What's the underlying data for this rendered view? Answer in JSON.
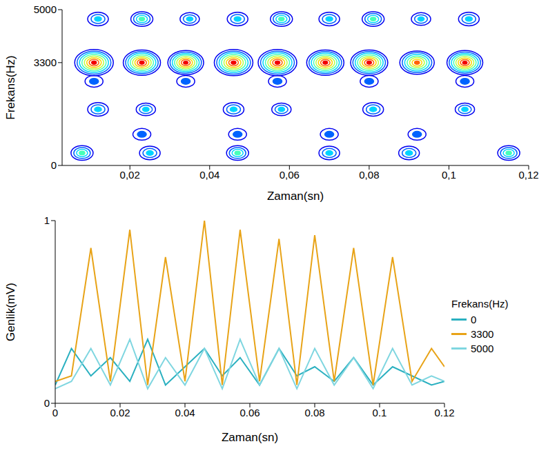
{
  "chart_data": [
    {
      "type": "contour",
      "x_label": "Zaman(sn)",
      "y_label": "Frekans(Hz)",
      "xlim": [
        0.003,
        0.12
      ],
      "ylim": [
        0,
        5000
      ],
      "xticks": [
        {
          "value": 0.02,
          "label": "0,02"
        },
        {
          "value": 0.04,
          "label": "0,04"
        },
        {
          "value": 0.06,
          "label": "0,06"
        },
        {
          "value": 0.08,
          "label": "0,08"
        },
        {
          "value": 0.1,
          "label": "0,1"
        },
        {
          "value": 0.12,
          "label": "0,12"
        }
      ],
      "yticks": [
        0,
        3300,
        5000
      ],
      "zlim": [
        0,
        1
      ],
      "points": [
        {
          "x": 0.011,
          "y": 3300,
          "z": 1
        },
        {
          "x": 0.023,
          "y": 3300,
          "z": 0.95
        },
        {
          "x": 0.034,
          "y": 3300,
          "z": 0.9
        },
        {
          "x": 0.046,
          "y": 3300,
          "z": 1
        },
        {
          "x": 0.057,
          "y": 3300,
          "z": 1
        },
        {
          "x": 0.069,
          "y": 3300,
          "z": 0.95
        },
        {
          "x": 0.08,
          "y": 3300,
          "z": 0.95
        },
        {
          "x": 0.092,
          "y": 3300,
          "z": 0.85
        },
        {
          "x": 0.104,
          "y": 3300,
          "z": 0.9
        },
        {
          "x": 0.012,
          "y": 4700,
          "z": 0.35
        },
        {
          "x": 0.023,
          "y": 4700,
          "z": 0.4
        },
        {
          "x": 0.035,
          "y": 4700,
          "z": 0.3
        },
        {
          "x": 0.047,
          "y": 4700,
          "z": 0.35
        },
        {
          "x": 0.058,
          "y": 4700,
          "z": 0.4
        },
        {
          "x": 0.07,
          "y": 4700,
          "z": 0.35
        },
        {
          "x": 0.081,
          "y": 4700,
          "z": 0.4
        },
        {
          "x": 0.093,
          "y": 4700,
          "z": 0.3
        },
        {
          "x": 0.105,
          "y": 4700,
          "z": 0.35
        },
        {
          "x": 0.011,
          "y": 2700,
          "z": 0.25
        },
        {
          "x": 0.034,
          "y": 2700,
          "z": 0.25
        },
        {
          "x": 0.057,
          "y": 2700,
          "z": 0.25
        },
        {
          "x": 0.08,
          "y": 2700,
          "z": 0.25
        },
        {
          "x": 0.104,
          "y": 2700,
          "z": 0.25
        },
        {
          "x": 0.012,
          "y": 1800,
          "z": 0.35
        },
        {
          "x": 0.024,
          "y": 1800,
          "z": 0.3
        },
        {
          "x": 0.046,
          "y": 1800,
          "z": 0.35
        },
        {
          "x": 0.058,
          "y": 1800,
          "z": 0.3
        },
        {
          "x": 0.081,
          "y": 1800,
          "z": 0.35
        },
        {
          "x": 0.104,
          "y": 1800,
          "z": 0.3
        },
        {
          "x": 0.023,
          "y": 1000,
          "z": 0.25
        },
        {
          "x": 0.047,
          "y": 1000,
          "z": 0.25
        },
        {
          "x": 0.07,
          "y": 1000,
          "z": 0.25
        },
        {
          "x": 0.092,
          "y": 1000,
          "z": 0.25
        },
        {
          "x": 0.008,
          "y": 400,
          "z": 0.4
        },
        {
          "x": 0.025,
          "y": 400,
          "z": 0.35
        },
        {
          "x": 0.047,
          "y": 400,
          "z": 0.4
        },
        {
          "x": 0.07,
          "y": 400,
          "z": 0.35
        },
        {
          "x": 0.09,
          "y": 400,
          "z": 0.35
        },
        {
          "x": 0.115,
          "y": 400,
          "z": 0.4
        }
      ]
    },
    {
      "type": "line",
      "x_label": "Zaman(sn)",
      "y_label": "Genlik(mV)",
      "legend_title": "Frekans(Hz)",
      "legend": "right",
      "x": [
        0,
        0.005,
        0.011,
        0.017,
        0.023,
        0.0285,
        0.034,
        0.04,
        0.046,
        0.0515,
        0.057,
        0.063,
        0.069,
        0.0745,
        0.08,
        0.086,
        0.092,
        0.098,
        0.104,
        0.11,
        0.116,
        0.12
      ],
      "xlim": [
        0,
        0.12
      ],
      "xticks": [
        0,
        0.02,
        0.04,
        0.06,
        0.08,
        0.1,
        0.12
      ],
      "ylim": [
        0,
        1
      ],
      "yticks": [
        0,
        1
      ],
      "series": [
        {
          "name": "0",
          "color": "#2ab0c0",
          "values": [
            0.1,
            0.3,
            0.15,
            0.25,
            0.12,
            0.35,
            0.1,
            0.2,
            0.3,
            0.15,
            0.25,
            0.1,
            0.3,
            0.15,
            0.2,
            0.12,
            0.25,
            0.1,
            0.2,
            0.15,
            0.1,
            0.12
          ]
        },
        {
          "name": "3300",
          "color": "#e8a317",
          "values": [
            0.12,
            0.15,
            0.85,
            0.12,
            0.95,
            0.1,
            0.8,
            0.12,
            1,
            0.1,
            0.95,
            0.12,
            0.9,
            0.1,
            0.92,
            0.12,
            0.85,
            0.1,
            0.8,
            0.12,
            0.3,
            0.2
          ]
        },
        {
          "name": "5000",
          "color": "#7fd6e0",
          "values": [
            0.08,
            0.12,
            0.3,
            0.1,
            0.35,
            0.08,
            0.25,
            0.1,
            0.3,
            0.08,
            0.35,
            0.1,
            0.3,
            0.08,
            0.3,
            0.1,
            0.25,
            0.08,
            0.3,
            0.1,
            0.15,
            0.12
          ]
        }
      ]
    }
  ]
}
